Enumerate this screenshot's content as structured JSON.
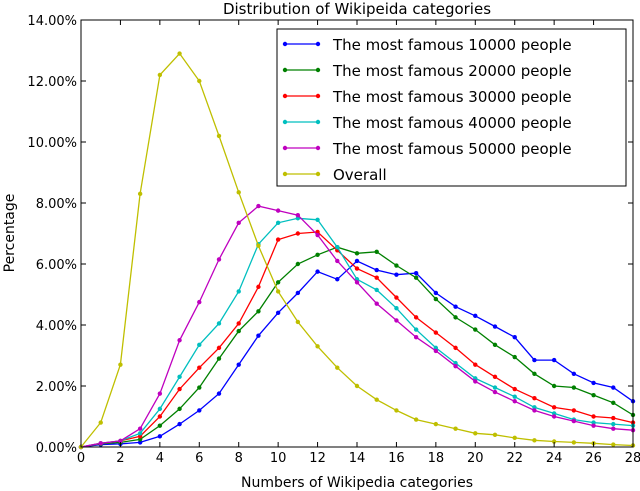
{
  "chart_data": {
    "type": "line",
    "title": "Distribution of Wikipeida categories",
    "xlabel": "Numbers of Wikipedia categories",
    "ylabel": "Percentage",
    "xlim": [
      0,
      28
    ],
    "ylim": [
      0,
      14
    ],
    "x_ticks": [
      0,
      2,
      4,
      6,
      8,
      10,
      12,
      14,
      16,
      18,
      20,
      22,
      24,
      26,
      28
    ],
    "y_ticks": [
      0,
      2,
      4,
      6,
      8,
      10,
      12,
      14
    ],
    "x_tick_labels": [
      "0",
      "2",
      "4",
      "6",
      "8",
      "10",
      "12",
      "14",
      "16",
      "18",
      "20",
      "22",
      "24",
      "26",
      "28"
    ],
    "y_tick_labels": [
      "0.00%",
      "2.00%",
      "4.00%",
      "6.00%",
      "8.00%",
      "10.00%",
      "12.00%",
      "14.00%"
    ],
    "grid": false,
    "legend_position": "top-right",
    "x": [
      0,
      1,
      2,
      3,
      4,
      5,
      6,
      7,
      8,
      9,
      10,
      11,
      12,
      13,
      14,
      15,
      16,
      17,
      18,
      19,
      20,
      21,
      22,
      23,
      24,
      25,
      26,
      27,
      28
    ],
    "series": [
      {
        "name": "The most famous 10000 people",
        "color": "#0000ff",
        "values": [
          0.0,
          0.08,
          0.1,
          0.15,
          0.35,
          0.75,
          1.2,
          1.75,
          2.7,
          3.65,
          4.4,
          5.05,
          5.75,
          5.5,
          6.1,
          5.8,
          5.65,
          5.7,
          5.05,
          4.6,
          4.3,
          3.95,
          3.6,
          2.85,
          2.85,
          2.4,
          2.1,
          1.95,
          1.5
        ]
      },
      {
        "name": "The most famous 20000 people",
        "color": "#008000",
        "values": [
          0.0,
          0.1,
          0.15,
          0.25,
          0.7,
          1.25,
          1.95,
          2.9,
          3.8,
          4.45,
          5.4,
          6.0,
          6.3,
          6.55,
          6.35,
          6.4,
          5.95,
          5.55,
          4.85,
          4.25,
          3.85,
          3.35,
          2.95,
          2.4,
          2.0,
          1.95,
          1.7,
          1.45,
          1.05
        ]
      },
      {
        "name": "The most famous 30000 people",
        "color": "#ff0000",
        "values": [
          0.0,
          0.12,
          0.2,
          0.35,
          1.0,
          1.9,
          2.6,
          3.25,
          4.05,
          5.25,
          6.8,
          7.0,
          7.05,
          6.45,
          5.85,
          5.55,
          4.9,
          4.25,
          3.75,
          3.25,
          2.7,
          2.3,
          1.9,
          1.6,
          1.3,
          1.2,
          1.0,
          0.95,
          0.8
        ]
      },
      {
        "name": "The most famous 40000 people",
        "color": "#00bfbf",
        "values": [
          0.0,
          0.12,
          0.2,
          0.45,
          1.25,
          2.3,
          3.35,
          4.05,
          5.1,
          6.65,
          7.35,
          7.5,
          7.45,
          6.55,
          5.5,
          5.15,
          4.55,
          3.85,
          3.25,
          2.75,
          2.25,
          1.95,
          1.65,
          1.3,
          1.1,
          0.9,
          0.8,
          0.75,
          0.7
        ]
      },
      {
        "name": "The most famous 50000 people",
        "color": "#bf00bf",
        "values": [
          0.0,
          0.12,
          0.2,
          0.6,
          1.75,
          3.5,
          4.75,
          6.15,
          7.35,
          7.9,
          7.75,
          7.6,
          6.95,
          6.1,
          5.4,
          4.7,
          4.15,
          3.6,
          3.15,
          2.65,
          2.15,
          1.8,
          1.5,
          1.2,
          1.0,
          0.85,
          0.7,
          0.6,
          0.55
        ]
      },
      {
        "name": "Overall",
        "color": "#bfbf00",
        "values": [
          0.0,
          0.8,
          2.7,
          8.3,
          12.2,
          12.9,
          12.0,
          10.2,
          8.35,
          6.6,
          5.1,
          4.1,
          3.3,
          2.6,
          2.0,
          1.55,
          1.2,
          0.9,
          0.75,
          0.6,
          0.45,
          0.4,
          0.3,
          0.22,
          0.18,
          0.15,
          0.12,
          0.08,
          0.05
        ]
      }
    ]
  }
}
